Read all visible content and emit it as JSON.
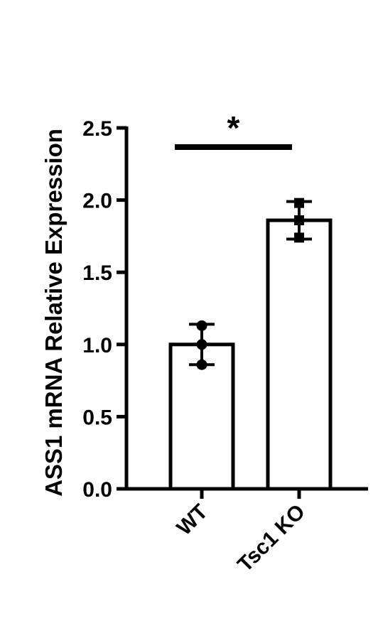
{
  "chart_data": {
    "type": "bar",
    "ylabel": "ASS1 mRNA Relative Expression",
    "ylim": [
      0,
      2.5
    ],
    "yticks": [
      "0.0",
      "0.5",
      "1.0",
      "1.5",
      "2.0",
      "2.5"
    ],
    "categories": [
      "WT",
      "Tsc1 KO"
    ],
    "values": [
      1.0,
      1.86
    ],
    "error": [
      0.14,
      0.13
    ],
    "points": [
      [
        1.13,
        1.0,
        0.86
      ],
      [
        1.98,
        1.86,
        1.74
      ]
    ],
    "point_markers": [
      "circle",
      "square"
    ],
    "significance": {
      "label": "*",
      "between": [
        0,
        1
      ]
    },
    "grid": false,
    "bar_fill": "#ffffff",
    "bar_stroke": "#000000"
  }
}
